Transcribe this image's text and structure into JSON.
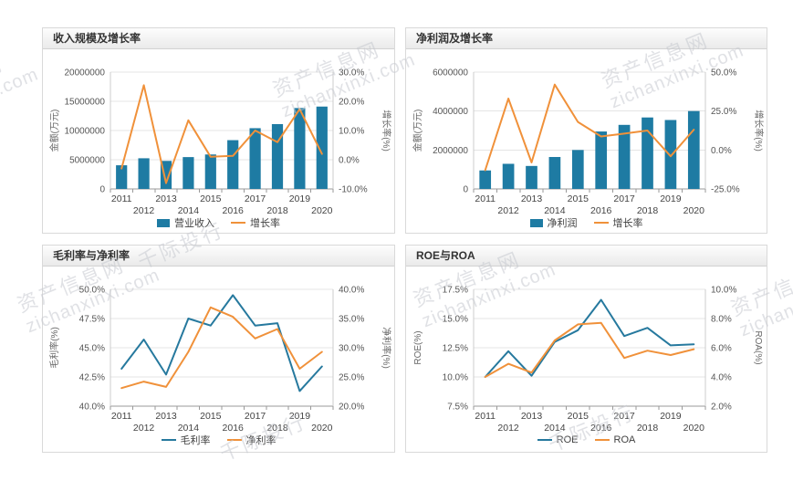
{
  "watermark": {
    "site_name": "资产信息网",
    "site_url": "zichanxinxi.com",
    "bank_name": "千际投行"
  },
  "colors": {
    "bar_blue": "#1e7ba3",
    "line_orange": "#f0913a",
    "line_blue": "#26799e",
    "grid": "#e4e4e4",
    "axis": "#999999"
  },
  "chart_data": [
    {
      "id": "revenue-growth",
      "type": "bar",
      "title": "收入规模及增长率",
      "categories": [
        "2011",
        "2012",
        "2013",
        "2014",
        "2015",
        "2016",
        "2017",
        "2018",
        "2019",
        "2020"
      ],
      "series": [
        {
          "name": "营业收入",
          "type": "bar",
          "axis": "left",
          "color": "#1e7ba3",
          "values": [
            4050000,
            5250000,
            4800000,
            5450000,
            5900000,
            8350000,
            10400000,
            11100000,
            13850000,
            14100000
          ]
        },
        {
          "name": "增长率",
          "type": "line",
          "axis": "right",
          "color": "#f0913a",
          "values": [
            -3.0,
            25.5,
            -8.0,
            13.5,
            1.0,
            1.3,
            10.0,
            6.0,
            17.3,
            2.0
          ]
        }
      ],
      "left_axis": {
        "label": "金额(万元)",
        "min": 0,
        "max": 20000000,
        "step": 5000000,
        "format": "int"
      },
      "right_axis": {
        "label": "增长率(%)",
        "min": -10,
        "max": 30,
        "step": 10,
        "format": "pct1"
      },
      "grid": true,
      "legend_position": "bottom"
    },
    {
      "id": "net-profit-growth",
      "type": "bar",
      "title": "净利润及增长率",
      "categories": [
        "2011",
        "2012",
        "2013",
        "2014",
        "2015",
        "2016",
        "2017",
        "2018",
        "2019",
        "2020"
      ],
      "series": [
        {
          "name": "净利润",
          "type": "bar",
          "axis": "left",
          "color": "#1e7ba3",
          "values": [
            950000,
            1290000,
            1180000,
            1640000,
            2000000,
            2950000,
            3290000,
            3670000,
            3540000,
            4000000
          ]
        },
        {
          "name": "增长率",
          "type": "line",
          "axis": "right",
          "color": "#f0913a",
          "values": [
            -13.0,
            33.0,
            -8.0,
            42.0,
            18.0,
            8.7,
            10.5,
            12.5,
            -4.0,
            13.0
          ]
        }
      ],
      "left_axis": {
        "label": "金额(万元)",
        "min": 0,
        "max": 6000000,
        "step": 2000000,
        "format": "int"
      },
      "right_axis": {
        "label": "增长率(%)",
        "min": -25,
        "max": 50,
        "step": 25,
        "format": "pct1"
      },
      "grid": true,
      "legend_position": "bottom"
    },
    {
      "id": "margins",
      "type": "line",
      "title": "毛利率与净利率",
      "categories": [
        "2011",
        "2012",
        "2013",
        "2014",
        "2015",
        "2016",
        "2017",
        "2018",
        "2019",
        "2020"
      ],
      "series": [
        {
          "name": "毛利率",
          "type": "line",
          "axis": "left",
          "color": "#26799e",
          "values": [
            43.2,
            45.7,
            42.7,
            47.5,
            46.9,
            49.5,
            46.9,
            47.1,
            41.3,
            43.4
          ]
        },
        {
          "name": "净利率",
          "type": "line",
          "axis": "right",
          "color": "#f0913a",
          "values": [
            23.1,
            24.2,
            23.3,
            29.3,
            36.9,
            35.3,
            31.6,
            33.2,
            26.4,
            29.3
          ]
        }
      ],
      "left_axis": {
        "label": "毛利率(%)",
        "min": 40,
        "max": 50,
        "step": 2.5,
        "format": "pct1"
      },
      "right_axis": {
        "label": "净利率(%)",
        "min": 20,
        "max": 40,
        "step": 5,
        "format": "pct1"
      },
      "grid": true,
      "legend_position": "bottom"
    },
    {
      "id": "roe-roa",
      "type": "line",
      "title": "ROE与ROA",
      "categories": [
        "2011",
        "2012",
        "2013",
        "2014",
        "2015",
        "2016",
        "2017",
        "2018",
        "2019",
        "2020"
      ],
      "series": [
        {
          "name": "ROE",
          "type": "line",
          "axis": "left",
          "color": "#26799e",
          "values": [
            10.0,
            12.2,
            10.1,
            13.0,
            14.0,
            16.6,
            13.5,
            14.2,
            12.7,
            12.8
          ]
        },
        {
          "name": "ROA",
          "type": "line",
          "axis": "right",
          "color": "#f0913a",
          "values": [
            4.0,
            4.9,
            4.3,
            6.5,
            7.6,
            7.7,
            5.3,
            5.8,
            5.5,
            5.9
          ]
        }
      ],
      "left_axis": {
        "label": "ROE(%)",
        "min": 7.5,
        "max": 17.5,
        "step": 2.5,
        "format": "pct1"
      },
      "right_axis": {
        "label": "ROA(%)",
        "min": 2,
        "max": 10,
        "step": 2,
        "format": "pct1"
      },
      "grid": true,
      "legend_position": "bottom"
    }
  ]
}
